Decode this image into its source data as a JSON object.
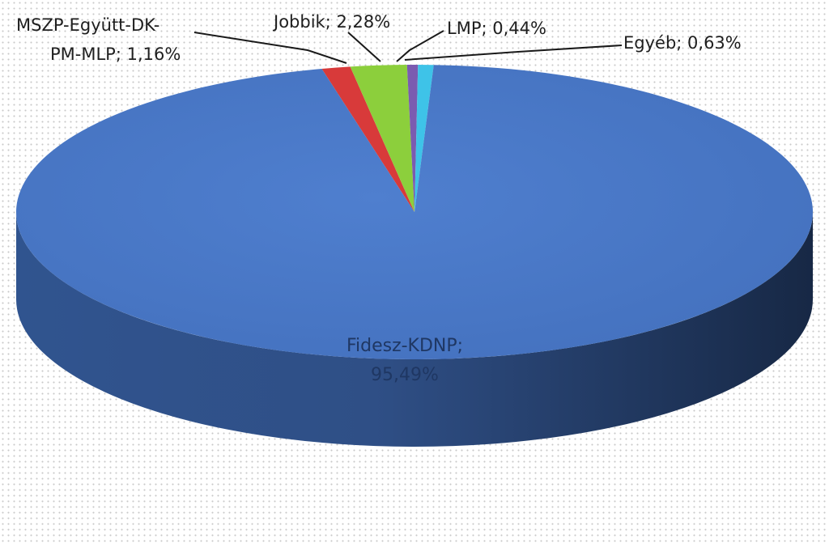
{
  "chart_data": {
    "type": "pie",
    "style": "3d",
    "label_format": "{name}; {value}%",
    "slices": [
      {
        "name": "Fidesz-KDNP",
        "value": "95,49",
        "color": "#4a78c6"
      },
      {
        "name": "MSZP-Együtt-DK-PM-MLP",
        "value": "1,16",
        "color": "#d83a3a"
      },
      {
        "name": "Jobbik",
        "value": "2,28",
        "color": "#8ccf3c"
      },
      {
        "name": "LMP",
        "value": "0,44",
        "color": "#7b5bb0"
      },
      {
        "name": "Egyéb",
        "value": "0,63",
        "color": "#3ec3e8"
      }
    ],
    "labels": {
      "fidesz_line1": "Fidesz-KDNP;",
      "fidesz_line2": "95,49%",
      "mszp_line1": "MSZP-Együtt-DK-",
      "mszp_line2": "PM-MLP; 1,16%",
      "jobbik": "Jobbik; 2,28%",
      "lmp": "LMP; 0,44%",
      "egyeb": "Egyéb; 0,63%"
    }
  }
}
